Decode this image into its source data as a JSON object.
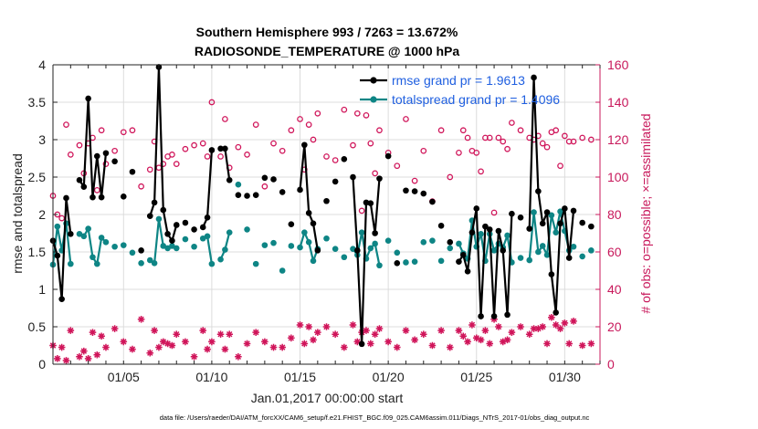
{
  "chart_data": {
    "type": "line",
    "title": "Southern Hemisphere 993 / 7263 = 13.672%",
    "subtitle": "RADIOSONDE_TEMPERATURE @ 1000 hPa",
    "xlabel": "Jan.01,2017 00:00:00 start",
    "ylabel_left": "rmse and totalspread",
    "ylabel_right": "# of obs: o=possible; ×=assimilated",
    "footer": "data file: /Users/raeder/DAI/ATM_forcXX/CAM6_setup/f.e21.FHIST_BGC.f09_025.CAM6assim.011/Diags_NTrS_2017-01/obs_diag_output.nc",
    "xlim": [
      1.0,
      32.0
    ],
    "ylim_left": [
      0,
      4
    ],
    "ylim_right": [
      0,
      160
    ],
    "grid": true,
    "legend_position": "top-right",
    "x_ticks": [
      {
        "value": 5,
        "label": "01/05"
      },
      {
        "value": 10,
        "label": "01/10"
      },
      {
        "value": 15,
        "label": "01/15"
      },
      {
        "value": 20,
        "label": "01/20"
      },
      {
        "value": 25,
        "label": "01/25"
      },
      {
        "value": 30,
        "label": "01/30"
      }
    ],
    "y_ticks_left": [
      "0",
      "0.5",
      "1",
      "1.5",
      "2",
      "2.5",
      "3",
      "3.5",
      "4"
    ],
    "y_ticks_right": [
      "0",
      "20",
      "40",
      "60",
      "80",
      "100",
      "120",
      "140",
      "160"
    ],
    "colors": {
      "rmse": "#000000",
      "spread": "#0e8585",
      "obs": "#d0155a",
      "legend_text": "#1f5fe0",
      "right_axis": "#c8185b",
      "axis": "#222222",
      "grid": "#dcdcdc"
    },
    "series": [
      {
        "name": "rmse grand pr = 1.9613",
        "axis": "left",
        "x": [
          1.0,
          1.25,
          1.5,
          1.75,
          2.0,
          2.5,
          2.75,
          3.0,
          3.25,
          3.5,
          3.75,
          4.0,
          4.5,
          5.0,
          5.5,
          6.0,
          6.5,
          6.75,
          7.0,
          7.25,
          7.5,
          7.75,
          8.0,
          8.5,
          9.0,
          9.5,
          9.75,
          10.0,
          10.5,
          10.75,
          11.0,
          11.5,
          12.0,
          12.5,
          13.0,
          13.5,
          14.0,
          14.5,
          15.0,
          15.25,
          15.5,
          15.75,
          16.0,
          16.5,
          17.0,
          17.5,
          18.0,
          18.25,
          18.5,
          18.75,
          19.0,
          19.25,
          19.5,
          20.0,
          20.5,
          21.0,
          21.5,
          22.0,
          22.5,
          23.0,
          23.5,
          24.0,
          24.25,
          24.5,
          24.75,
          25.0,
          25.25,
          25.5,
          25.75,
          26.0,
          26.25,
          26.5,
          26.75,
          27.0,
          27.5,
          28.0,
          28.25,
          28.5,
          28.75,
          29.0,
          29.25,
          29.5,
          29.75,
          30.0,
          30.25,
          30.5,
          31.0,
          31.5
        ],
        "values": [
          1.65,
          1.45,
          0.87,
          2.22,
          1.74,
          2.46,
          2.37,
          3.55,
          2.23,
          2.78,
          2.23,
          2.82,
          2.71,
          2.24,
          2.57,
          1.52,
          1.98,
          2.16,
          3.97,
          2.06,
          1.74,
          1.65,
          1.86,
          1.89,
          1.8,
          1.83,
          1.96,
          2.86,
          2.88,
          2.88,
          2.46,
          2.26,
          2.25,
          2.26,
          2.49,
          2.47,
          2.3,
          1.87,
          2.33,
          2.93,
          2.02,
          1.88,
          1.52,
          2.18,
          2.44,
          2.74,
          2.5,
          1.52,
          0.27,
          2.16,
          2.15,
          1.75,
          2.48,
          2.78,
          1.35,
          2.32,
          2.31,
          2.28,
          2.17,
          1.85,
          1.63,
          1.37,
          1.46,
          1.24,
          1.76,
          2.08,
          0.64,
          1.84,
          1.8,
          0.64,
          1.78,
          1.52,
          0.66,
          2.01,
          1.96,
          1.81,
          3.83,
          2.31,
          1.88,
          2.03,
          1.2,
          0.69,
          1.88,
          2.08,
          1.42,
          2.05,
          1.89,
          1.84
        ]
      },
      {
        "name": "totalspread grand pr = 1.4096",
        "axis": "left",
        "x": [
          1.0,
          1.25,
          1.5,
          1.75,
          2.0,
          2.5,
          2.75,
          3.0,
          3.25,
          3.5,
          3.75,
          4.0,
          4.5,
          5.0,
          5.5,
          6.0,
          6.5,
          6.75,
          7.0,
          7.25,
          7.5,
          7.75,
          8.0,
          8.5,
          9.0,
          9.5,
          9.75,
          10.0,
          10.5,
          10.75,
          11.0,
          11.5,
          12.0,
          12.5,
          13.0,
          13.5,
          14.0,
          14.5,
          15.0,
          15.25,
          15.5,
          15.75,
          16.0,
          16.5,
          17.0,
          17.5,
          18.0,
          18.25,
          18.5,
          18.75,
          19.0,
          19.25,
          19.5,
          20.0,
          20.5,
          21.0,
          21.5,
          22.0,
          22.5,
          23.0,
          23.5,
          24.0,
          24.25,
          24.5,
          24.75,
          25.0,
          25.25,
          25.5,
          25.75,
          26.0,
          26.25,
          26.5,
          26.75,
          27.0,
          27.5,
          28.0,
          28.25,
          28.5,
          28.75,
          29.0,
          29.25,
          29.5,
          29.75,
          30.0,
          30.25,
          30.5,
          31.0,
          31.5
        ],
        "values": [
          1.33,
          1.84,
          1.52,
          1.88,
          1.34,
          1.74,
          1.71,
          1.81,
          1.43,
          1.34,
          1.69,
          1.63,
          1.57,
          1.59,
          1.49,
          1.35,
          1.39,
          1.35,
          1.94,
          1.58,
          1.55,
          1.58,
          1.55,
          1.67,
          1.57,
          1.68,
          1.71,
          1.34,
          1.4,
          1.53,
          1.76,
          2.4,
          1.8,
          1.34,
          1.59,
          1.62,
          1.25,
          1.58,
          1.56,
          1.76,
          1.63,
          1.38,
          1.54,
          1.68,
          1.54,
          1.43,
          1.54,
          1.46,
          1.76,
          1.41,
          1.55,
          1.61,
          1.32,
          1.65,
          1.49,
          1.36,
          1.37,
          1.63,
          1.65,
          1.38,
          1.55,
          1.61,
          1.48,
          1.41,
          1.92,
          1.57,
          1.74,
          1.38,
          1.74,
          1.52,
          1.61,
          1.56,
          1.72,
          1.36,
          1.42,
          1.39,
          2.03,
          1.5,
          1.58,
          1.46,
          1.99,
          1.76,
          2.04,
          1.78,
          1.52,
          1.57,
          1.44,
          1.52
        ]
      },
      {
        "name": "# of obs possible",
        "axis": "right",
        "marker": "circle",
        "x": [
          1.0,
          1.25,
          1.5,
          1.75,
          2.0,
          2.5,
          2.75,
          3.0,
          3.25,
          3.5,
          3.75,
          4.0,
          4.5,
          5.0,
          5.5,
          6.0,
          6.5,
          6.75,
          7.0,
          7.25,
          7.5,
          7.75,
          8.0,
          8.5,
          9.0,
          9.5,
          9.75,
          10.0,
          10.5,
          10.75,
          11.0,
          11.5,
          12.0,
          12.5,
          13.0,
          13.5,
          14.0,
          14.5,
          15.0,
          15.25,
          15.5,
          15.75,
          16.0,
          16.5,
          17.0,
          17.5,
          18.0,
          18.25,
          18.5,
          18.75,
          19.0,
          19.25,
          19.5,
          20.0,
          20.5,
          21.0,
          21.5,
          22.0,
          22.5,
          23.0,
          23.5,
          24.0,
          24.25,
          24.5,
          24.75,
          25.0,
          25.25,
          25.5,
          25.75,
          26.0,
          26.25,
          26.5,
          26.75,
          27.0,
          27.5,
          28.0,
          28.25,
          28.5,
          28.75,
          29.0,
          29.25,
          29.5,
          29.75,
          30.0,
          30.25,
          30.5,
          31.0,
          31.5
        ],
        "values": [
          90,
          80,
          78,
          128,
          112,
          117,
          102,
          118,
          121,
          93,
          125,
          107,
          114,
          124,
          125,
          95,
          104,
          119,
          105,
          107,
          111,
          112,
          107,
          115,
          117,
          118,
          111,
          140,
          111,
          131,
          105,
          116,
          112,
          128,
          95,
          118,
          114,
          125,
          131,
          104,
          128,
          120,
          134,
          111,
          109,
          136,
          117,
          134,
          82,
          133,
          118,
          102,
          125,
          113,
          106,
          131,
          98,
          114,
          87,
          125,
          100,
          113,
          125,
          121,
          114,
          113,
          103,
          121,
          121,
          81,
          121,
          119,
          115,
          129,
          125,
          121,
          120,
          122,
          118,
          116,
          124,
          125,
          106,
          122,
          119,
          119,
          121,
          120
        ]
      },
      {
        "name": "# of obs assimilated",
        "axis": "right",
        "marker": "asterisk",
        "x": [
          1.0,
          1.25,
          1.5,
          1.75,
          2.0,
          2.5,
          2.75,
          3.0,
          3.25,
          3.5,
          3.75,
          4.0,
          4.5,
          5.0,
          5.5,
          6.0,
          6.5,
          6.75,
          7.0,
          7.25,
          7.5,
          7.75,
          8.0,
          8.5,
          9.0,
          9.5,
          9.75,
          10.0,
          10.5,
          10.75,
          11.0,
          11.5,
          12.0,
          12.5,
          13.0,
          13.5,
          14.0,
          14.5,
          15.0,
          15.25,
          15.5,
          15.75,
          16.0,
          16.5,
          17.0,
          17.5,
          18.0,
          18.25,
          18.5,
          18.75,
          19.0,
          19.25,
          19.5,
          20.0,
          20.5,
          21.0,
          21.5,
          22.0,
          22.5,
          23.0,
          23.5,
          24.0,
          24.25,
          24.5,
          24.75,
          25.0,
          25.25,
          25.5,
          25.75,
          26.0,
          26.25,
          26.5,
          26.75,
          27.0,
          27.5,
          28.0,
          28.25,
          28.5,
          28.75,
          29.0,
          29.25,
          29.5,
          29.75,
          30.0,
          30.25,
          30.5,
          31.0,
          31.5
        ],
        "values": [
          10,
          3,
          9,
          2,
          18,
          4,
          7,
          3,
          17,
          5,
          15,
          9,
          19,
          12,
          8,
          24,
          6,
          18,
          9,
          12,
          11,
          10,
          16,
          12,
          4,
          18,
          8,
          12,
          16,
          8,
          16,
          4,
          11,
          17,
          12,
          9,
          9,
          14,
          21,
          11,
          20,
          13,
          17,
          20,
          16,
          9,
          21,
          12,
          17,
          18,
          11,
          16,
          19,
          12,
          9,
          18,
          13,
          16,
          10,
          18,
          9,
          18,
          15,
          12,
          21,
          14,
          13,
          18,
          11,
          24,
          20,
          12,
          13,
          17,
          20,
          16,
          19,
          19,
          20,
          11,
          25,
          21,
          19,
          22,
          11,
          23,
          10,
          11
        ]
      }
    ]
  }
}
